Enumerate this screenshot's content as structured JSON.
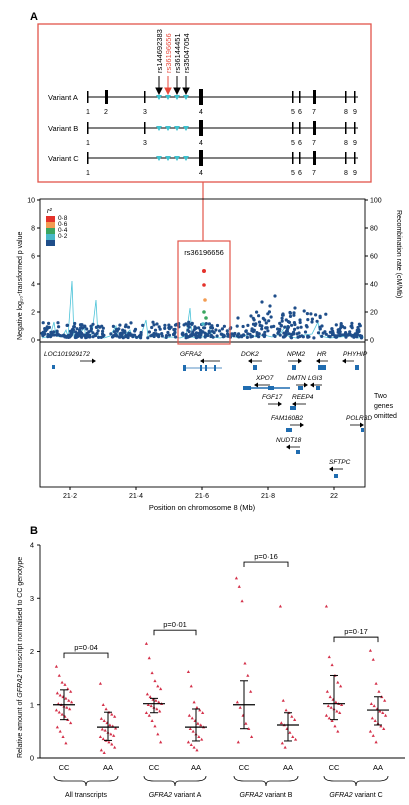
{
  "panel_a_label": "A",
  "panel_b_label": "B",
  "variants": {
    "names": [
      "Variant A",
      "Variant B",
      "Variant C"
    ],
    "snps": [
      "rs144692383",
      "rs36196656",
      "rs36144451",
      "rs35047054"
    ],
    "highlight_snp": "rs36196656",
    "exon_labels": [
      [
        "1",
        "2",
        "3",
        "4",
        "5",
        "6",
        "7",
        "8",
        "9"
      ],
      [
        "1",
        "3",
        "4",
        "5",
        "6",
        "7",
        "8",
        "9"
      ],
      [
        "1",
        "4",
        "5",
        "6",
        "7",
        "8",
        "9"
      ]
    ]
  },
  "regional": {
    "lead_snp": "rs36196656",
    "r2_label": "r²",
    "r2_legend": [
      "0·8",
      "0·6",
      "0·4",
      "0·2"
    ],
    "y_left_label": "Negative log₁₀-transformed p value",
    "y_right_label": "Recombination rate (cM/Mb)",
    "x_label": "Position on chromosome 8 (Mb)",
    "y_left_ticks": [
      "0",
      "2",
      "4",
      "6",
      "8",
      "10"
    ],
    "y_right_ticks": [
      "0",
      "20",
      "40",
      "60",
      "80",
      "100"
    ],
    "x_ticks": [
      "21·2",
      "21·4",
      "21·6",
      "21·8",
      "22"
    ],
    "genes": [
      "LOC101929172",
      "GFRA2",
      "DOK2",
      "NPM2",
      "HR",
      "PHYHIP",
      "XPO7",
      "DMTN",
      "LGI3",
      "FGF17",
      "REEP4",
      "FAM160B2",
      "NUDT18",
      "POLR3D",
      "SFTPC"
    ],
    "omitted_note": "Two genes omitted"
  },
  "colors": {
    "frame": "#e2554a",
    "snp_marker": "#3ec2cf",
    "highlight": "#e84a3c",
    "points": "#1f4e8a",
    "recomb": "#4cc3d8",
    "r2": [
      "#e4322b",
      "#f39c52",
      "#3aa660",
      "#48b8c8",
      "#1f4e8a"
    ],
    "dot": "#d4314a"
  },
  "chart_data": {
    "type": "scatter",
    "ylabel": "Relative amount of GFRA2 transcript normalised to CC genotype",
    "ylim": [
      0,
      4
    ],
    "y_ticks": [
      "0",
      "1",
      "2",
      "3",
      "4"
    ],
    "groups": [
      {
        "name": "All transcripts",
        "p": "p=0·04",
        "genotypes": [
          {
            "label": "CC",
            "mean": 1.0,
            "sd_low": 0.72,
            "sd_high": 1.28,
            "values": [
              1.72,
              1.55,
              1.42,
              1.38,
              1.3,
              1.25,
              1.22,
              1.18,
              1.15,
              1.12,
              1.08,
              1.05,
              1.02,
              1.0,
              0.97,
              0.95,
              0.92,
              0.9,
              0.86,
              0.82,
              0.78,
              0.72,
              0.66,
              0.58,
              0.5,
              0.4,
              0.28
            ]
          },
          {
            "label": "AA",
            "mean": 0.58,
            "sd_low": 0.33,
            "sd_high": 0.86,
            "values": [
              1.4,
              1.0,
              0.92,
              0.86,
              0.82,
              0.78,
              0.74,
              0.7,
              0.66,
              0.62,
              0.6,
              0.56,
              0.54,
              0.52,
              0.48,
              0.45,
              0.42,
              0.4,
              0.36,
              0.33,
              0.3,
              0.26,
              0.2,
              0.15,
              0.1
            ]
          }
        ]
      },
      {
        "name": "GFRA2 variant A",
        "p": "p=0·01",
        "genotypes": [
          {
            "label": "CC",
            "mean": 1.02,
            "sd_low": 0.85,
            "sd_high": 1.12,
            "values": [
              2.15,
              1.88,
              1.6,
              1.45,
              1.35,
              1.3,
              1.2,
              1.15,
              1.1,
              1.08,
              1.05,
              1.02,
              1.0,
              0.98,
              0.95,
              0.92,
              0.88,
              0.85,
              0.8,
              0.7,
              0.6,
              0.45,
              0.3
            ]
          },
          {
            "label": "AA",
            "mean": 0.58,
            "sd_low": 0.32,
            "sd_high": 0.92,
            "values": [
              1.62,
              1.35,
              1.05,
              0.95,
              0.9,
              0.85,
              0.8,
              0.75,
              0.7,
              0.65,
              0.62,
              0.58,
              0.55,
              0.5,
              0.45,
              0.4,
              0.35,
              0.3,
              0.25,
              0.2,
              0.15
            ]
          }
        ]
      },
      {
        "name": "GFRA2 variant B",
        "p": "p=0·16",
        "genotypes": [
          {
            "label": "CC",
            "mean": 1.0,
            "sd_low": 0.55,
            "sd_high": 1.45,
            "values": [
              3.38,
              3.22,
              2.95,
              1.78,
              1.55,
              1.25,
              1.05,
              0.95,
              0.8,
              0.65,
              0.55,
              0.4,
              0.3
            ]
          },
          {
            "label": "AA",
            "mean": 0.62,
            "sd_low": 0.32,
            "sd_high": 0.85,
            "values": [
              2.85,
              1.08,
              0.9,
              0.85,
              0.78,
              0.72,
              0.66,
              0.62,
              0.55,
              0.48,
              0.4,
              0.35,
              0.28,
              0.2
            ]
          }
        ]
      },
      {
        "name": "GFRA2 variant C",
        "p": "p=0·17",
        "genotypes": [
          {
            "label": "CC",
            "mean": 1.02,
            "sd_low": 0.72,
            "sd_high": 1.55,
            "values": [
              2.85,
              1.9,
              1.75,
              1.55,
              1.42,
              1.35,
              1.25,
              1.15,
              1.1,
              1.05,
              1.02,
              1.0,
              0.98,
              0.95,
              0.92,
              0.88,
              0.85,
              0.8,
              0.75,
              0.7,
              0.6,
              0.5
            ]
          },
          {
            "label": "AA",
            "mean": 0.9,
            "sd_low": 0.62,
            "sd_high": 1.15,
            "values": [
              2.02,
              1.85,
              1.4,
              1.25,
              1.15,
              1.08,
              1.02,
              0.98,
              0.92,
              0.88,
              0.85,
              0.8,
              0.75,
              0.7,
              0.65,
              0.6,
              0.55,
              0.5,
              0.42,
              0.3
            ]
          }
        ]
      }
    ]
  }
}
